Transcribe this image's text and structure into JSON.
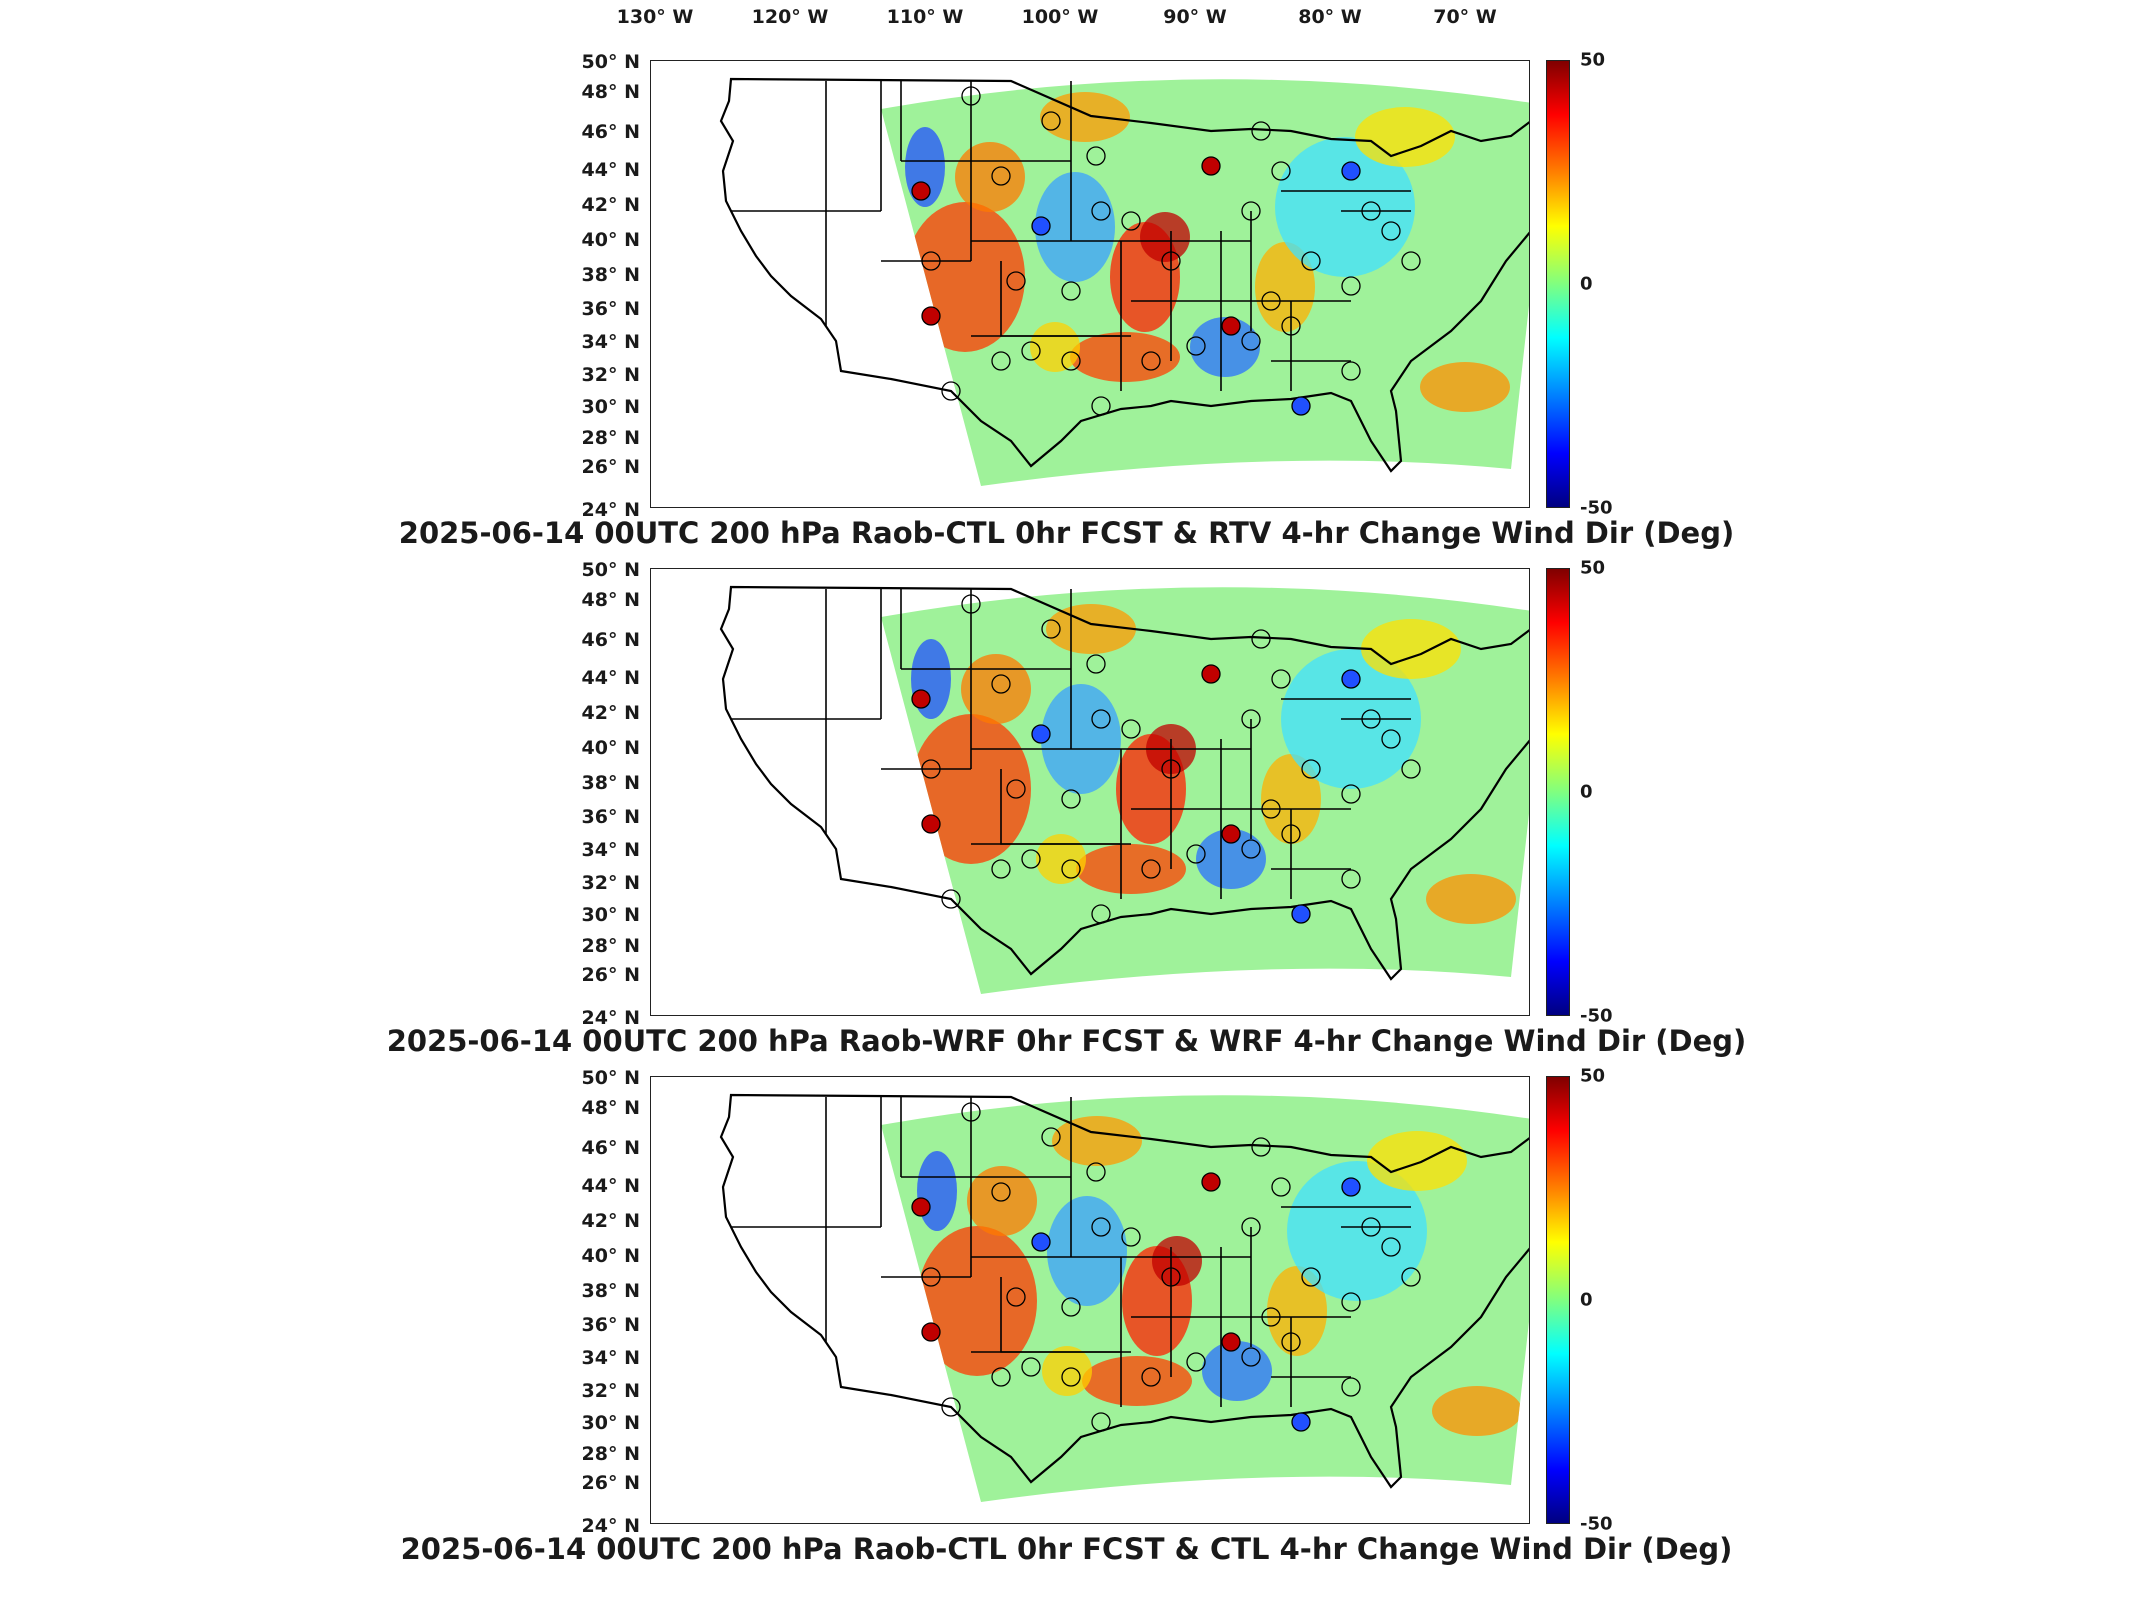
{
  "lon_ticks": [
    "130° W",
    "120° W",
    "110° W",
    "100° W",
    "90° W",
    "80° W",
    "70° W"
  ],
  "lat_ticks": [
    "50° N",
    "48° N",
    "46° N",
    "44° N",
    "42° N",
    "40° N",
    "38° N",
    "36° N",
    "34° N",
    "32° N",
    "30° N",
    "28° N",
    "26° N",
    "24° N"
  ],
  "colorbar": {
    "max_label": "50",
    "mid_label": "0",
    "min_label": "-50",
    "range": [
      -50,
      50
    ]
  },
  "colors": {
    "positive": "#ff0000",
    "negative": "#0000ff",
    "neutral": "#7fff7f"
  },
  "panels": [
    {
      "title": "2025-06-14 00UTC 200 hPa Raob-CTL 0hr FCST & RTV 4-hr Change Wind Dir (Deg)"
    },
    {
      "title": "2025-06-14 00UTC 200 hPa Raob-WRF 0hr FCST & WRF 4-hr Change Wind Dir (Deg)"
    },
    {
      "title": "2025-06-14 00UTC 200 hPa Raob-CTL 0hr FCST & CTL 4-hr Change Wind Dir (Deg)"
    }
  ]
}
